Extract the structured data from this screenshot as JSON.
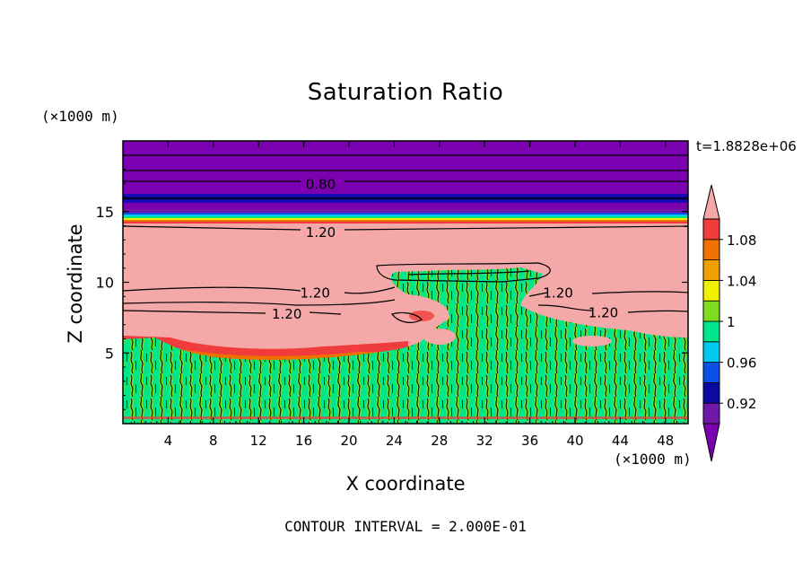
{
  "chart_data": {
    "type": "contour",
    "title": "Saturation Ratio",
    "xlabel": "X coordinate",
    "ylabel": "Z coordinate",
    "x_unit": "(×1000 m)",
    "y_unit": "(×1000 m)",
    "xlim": [
      0,
      50
    ],
    "ylim": [
      0,
      20
    ],
    "x_ticks": [
      4,
      8,
      12,
      16,
      20,
      24,
      28,
      32,
      36,
      40,
      44,
      48
    ],
    "y_ticks": [
      5,
      10,
      15
    ],
    "time_label": "t=1.8828e+06",
    "footer": "CONTOUR INTERVAL = 2.000E-01",
    "contour_labels": [
      {
        "text": "0.80",
        "x": 17.5,
        "y": 17.0
      },
      {
        "text": "1.20",
        "x": 17.5,
        "y": 13.6
      },
      {
        "text": "1.20",
        "x": 17.0,
        "y": 9.3
      },
      {
        "text": "1.20",
        "x": 14.5,
        "y": 7.8
      },
      {
        "text": "1.20",
        "x": 38.5,
        "y": 9.3
      },
      {
        "text": "1.20",
        "x": 42.5,
        "y": 7.9
      }
    ],
    "colorbar": {
      "levels": [
        0.9,
        0.92,
        0.94,
        0.96,
        0.98,
        1.0,
        1.02,
        1.04,
        1.06,
        1.08,
        1.1
      ],
      "tick_labels": [
        "0.92",
        "0.96",
        "1",
        "1.04",
        "1.08"
      ],
      "tick_values": [
        0.92,
        0.96,
        1.0,
        1.04,
        1.08
      ],
      "colors": [
        "#6e17a8",
        "#0a0aa0",
        "#0a50e6",
        "#00c8f0",
        "#00e68c",
        "#7ddc1e",
        "#f0f000",
        "#f0a000",
        "#f07000",
        "#f03c3c",
        "#f5a8a8"
      ],
      "under_color": "#7a00b0",
      "over_color": "#f5a8a8"
    }
  }
}
